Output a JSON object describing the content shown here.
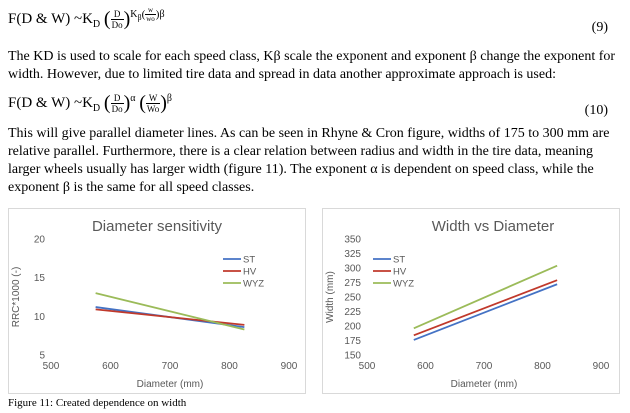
{
  "equations": [
    {
      "lhs": "F(D & W) ~K",
      "sub": "D",
      "frac1_num": "D",
      "frac1_den": "Do",
      "k_sub": "β",
      "frac2_num": "w",
      "frac2_den": "wo",
      "exp": "β",
      "number": "(9)"
    },
    {
      "lhs": "F(D & W) ~K",
      "sub": "D",
      "frac1_num": "D",
      "frac1_den": "Do",
      "exp1": "α",
      "frac2_num": "W",
      "frac2_den": "Wo",
      "exp2": "β",
      "number": "(10)"
    }
  ],
  "paragraphs": [
    "The KD is used to scale for each speed class, Kβ scale the exponent and exponent β change the exponent for width.  However, due to limited tire data and spread in data another approximate approach is used:",
    "This will give parallel diameter lines. As can be seen in Rhyne & Cron figure, widths of 175 to 300 mm are relative parallel. Furthermore, there is a clear relation between radius and width in the tire data, meaning larger wheels usually has larger width (figure 11). The exponent α is dependent on speed class, while the exponent β is the same for all speed classes."
  ],
  "caption": "Figure 11:  Created dependence on width",
  "chart_data": [
    {
      "type": "line",
      "title": "Diameter sensitivity",
      "xlabel": "Diameter (mm)",
      "ylabel": "RRC*1000 (-)",
      "xlim": [
        500,
        900
      ],
      "ylim": [
        5,
        20
      ],
      "xticks": [
        500,
        600,
        700,
        800,
        900
      ],
      "yticks": [
        5,
        10,
        15,
        20
      ],
      "grid": false,
      "legend": "top-right",
      "series": [
        {
          "name": "ST",
          "color": "#4472c4",
          "x": [
            575,
            825
          ],
          "y": [
            11.2,
            8.6
          ]
        },
        {
          "name": "HV",
          "color": "#c0392b",
          "x": [
            575,
            825
          ],
          "y": [
            10.9,
            8.9
          ]
        },
        {
          "name": "WYZ",
          "color": "#9bbb59",
          "x": [
            575,
            825
          ],
          "y": [
            13.0,
            8.3
          ]
        }
      ]
    },
    {
      "type": "line",
      "title": "Width vs Diameter",
      "xlabel": "Diameter (mm)",
      "ylabel": "Width (mm)",
      "xlim": [
        500,
        900
      ],
      "ylim": [
        150,
        350
      ],
      "xticks": [
        500,
        600,
        700,
        800,
        900
      ],
      "yticks": [
        150,
        175,
        200,
        225,
        250,
        275,
        300,
        325,
        350
      ],
      "grid": false,
      "legend": "top-left",
      "series": [
        {
          "name": "ST",
          "color": "#4472c4",
          "x": [
            580,
            825
          ],
          "y": [
            176,
            272
          ]
        },
        {
          "name": "HV",
          "color": "#c0392b",
          "x": [
            580,
            825
          ],
          "y": [
            184,
            279
          ]
        },
        {
          "name": "WYZ",
          "color": "#9bbb59",
          "x": [
            580,
            825
          ],
          "y": [
            196,
            304
          ]
        }
      ]
    }
  ]
}
